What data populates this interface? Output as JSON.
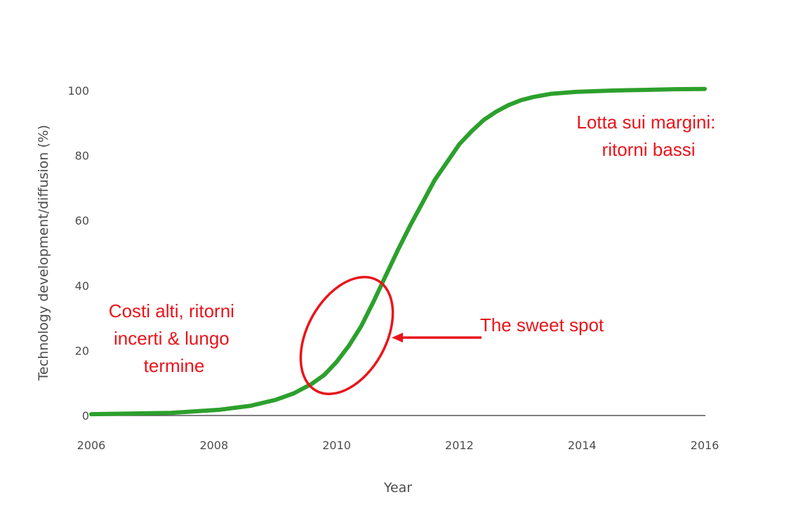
{
  "chart_data": {
    "type": "line",
    "xlabel": "Year",
    "ylabel": "Technology development/diffusion (%)",
    "xlim": [
      2006,
      2016
    ],
    "ylim": [
      0,
      100
    ],
    "xticks": [
      "2006",
      "2008",
      "2010",
      "2012",
      "2014",
      "2016"
    ],
    "yticks": [
      "0",
      "20",
      "40",
      "60",
      "80",
      "100"
    ],
    "grid": false,
    "line_color": "#2ca02c",
    "annotation_color": "#e8151b",
    "series": [
      {
        "x": [
          2006.0,
          2007.3,
          2008.1,
          2008.6,
          2009.0,
          2009.3,
          2009.6,
          2009.8,
          2010.0,
          2010.2,
          2010.4,
          2010.6,
          2010.8,
          2011.0,
          2011.2,
          2011.4,
          2011.6,
          2011.8,
          2012.0,
          2012.2,
          2012.4,
          2012.6,
          2012.8,
          2013.0,
          2013.2,
          2013.5,
          2013.9,
          2014.5,
          2015.0,
          2015.5,
          2016.0
        ],
        "y": [
          0.4,
          0.8,
          1.8,
          3.0,
          4.8,
          6.8,
          9.8,
          12.5,
          16.5,
          21.5,
          27.5,
          35.0,
          43.0,
          51.0,
          58.5,
          65.5,
          72.5,
          78.0,
          83.5,
          87.5,
          91.0,
          93.5,
          95.5,
          97.0,
          98.0,
          99.0,
          99.6,
          100.0,
          100.2,
          100.4,
          100.5
        ]
      }
    ],
    "annotations": [
      {
        "lines": [
          "Lotta sui margini:",
          "ritorni bassi"
        ],
        "near_year": 2015.1,
        "near_value": 90
      },
      {
        "lines": [
          "Costi alti, ritorni",
          "incerti & lungo",
          "termine"
        ],
        "near_year": 2007.3,
        "near_value": 26
      },
      {
        "lines": [
          "The sweet spot"
        ],
        "near_year": 2011.9,
        "near_value": 28
      }
    ]
  }
}
